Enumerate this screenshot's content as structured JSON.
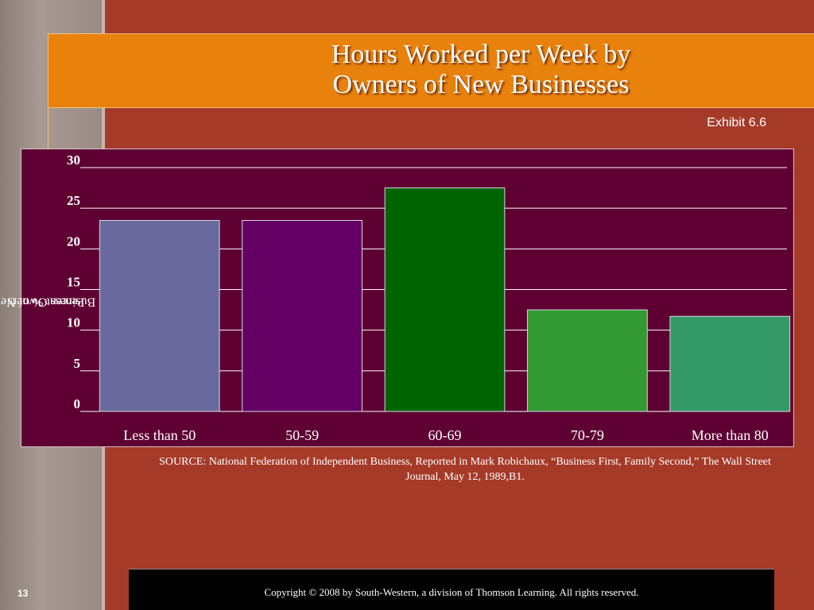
{
  "slide": {
    "title_line1": "Hours Worked per Week by",
    "title_line2": "Owners of New Businesses",
    "exhibit": "Exhibit 6.6",
    "source": "SOURCE: National Federation of Independent Business, Reported in Mark Robichaux, “Business First, Family Second,” The Wall Street Journal, May 12, 1989,B1.",
    "copyright": "Copyright © 2008 by South-Western, a division of Thomson Learning. All  rights reserved.",
    "page_number": "13"
  },
  "colors": {
    "background": "#a63a28",
    "title_band": "#e8820c",
    "plot_background": "#5e0032"
  },
  "chart_data": {
    "type": "bar",
    "categories": [
      "Less than 50",
      "50-59",
      "60-69",
      "70-79",
      "More than 80"
    ],
    "values": [
      23.5,
      23.5,
      27.5,
      12.5,
      11.7
    ],
    "bar_colors": [
      "#6a6a9e",
      "#640064",
      "#006400",
      "#339933",
      "#339966"
    ],
    "ylabel": "Percent % of New Business Owners",
    "ylabel_lines": [
      "Percent % of New",
      "Business Owners"
    ],
    "ylim": [
      0,
      30
    ],
    "yticks": [
      0,
      5,
      10,
      15,
      20,
      25,
      30
    ],
    "grid": true
  }
}
